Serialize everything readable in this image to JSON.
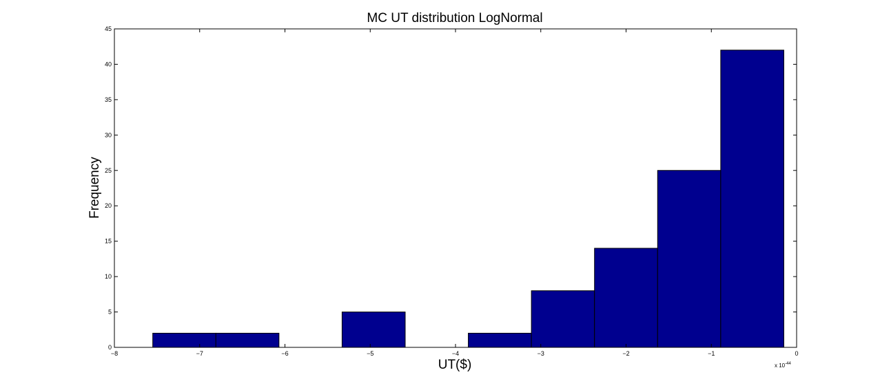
{
  "chart_data": {
    "type": "bar",
    "title": "MC UT distribution LogNormal",
    "xlabel": "UT($)",
    "ylabel": "Frequency",
    "x_scale_note": "x 10",
    "x_scale_exponent": "-44",
    "xlim": [
      -8,
      0
    ],
    "ylim": [
      0,
      45
    ],
    "xticks": [
      -8,
      -7,
      -6,
      -5,
      -4,
      -3,
      -2,
      -1,
      0
    ],
    "xtick_labels": [
      "−8",
      "−7",
      "−6",
      "−5",
      "−4",
      "−3",
      "−2",
      "−1",
      "0"
    ],
    "yticks": [
      0,
      5,
      10,
      15,
      20,
      25,
      30,
      35,
      40,
      45
    ],
    "ytick_labels": [
      "0",
      "5",
      "10",
      "15",
      "20",
      "25",
      "30",
      "35",
      "40",
      "45"
    ],
    "bins": [
      {
        "x0": -7.55,
        "x1": -6.81,
        "count": 2
      },
      {
        "x0": -6.81,
        "x1": -6.07,
        "count": 2
      },
      {
        "x0": -6.07,
        "x1": -5.33,
        "count": 0
      },
      {
        "x0": -5.33,
        "x1": -4.59,
        "count": 5
      },
      {
        "x0": -4.59,
        "x1": -3.85,
        "count": 0
      },
      {
        "x0": -3.85,
        "x1": -3.11,
        "count": 2
      },
      {
        "x0": -3.11,
        "x1": -2.37,
        "count": 8
      },
      {
        "x0": -2.37,
        "x1": -1.63,
        "count": 14
      },
      {
        "x0": -1.63,
        "x1": -0.89,
        "count": 25
      },
      {
        "x0": -0.89,
        "x1": -0.15,
        "count": 42
      }
    ],
    "bar_color": "#00008f",
    "grid": false
  }
}
